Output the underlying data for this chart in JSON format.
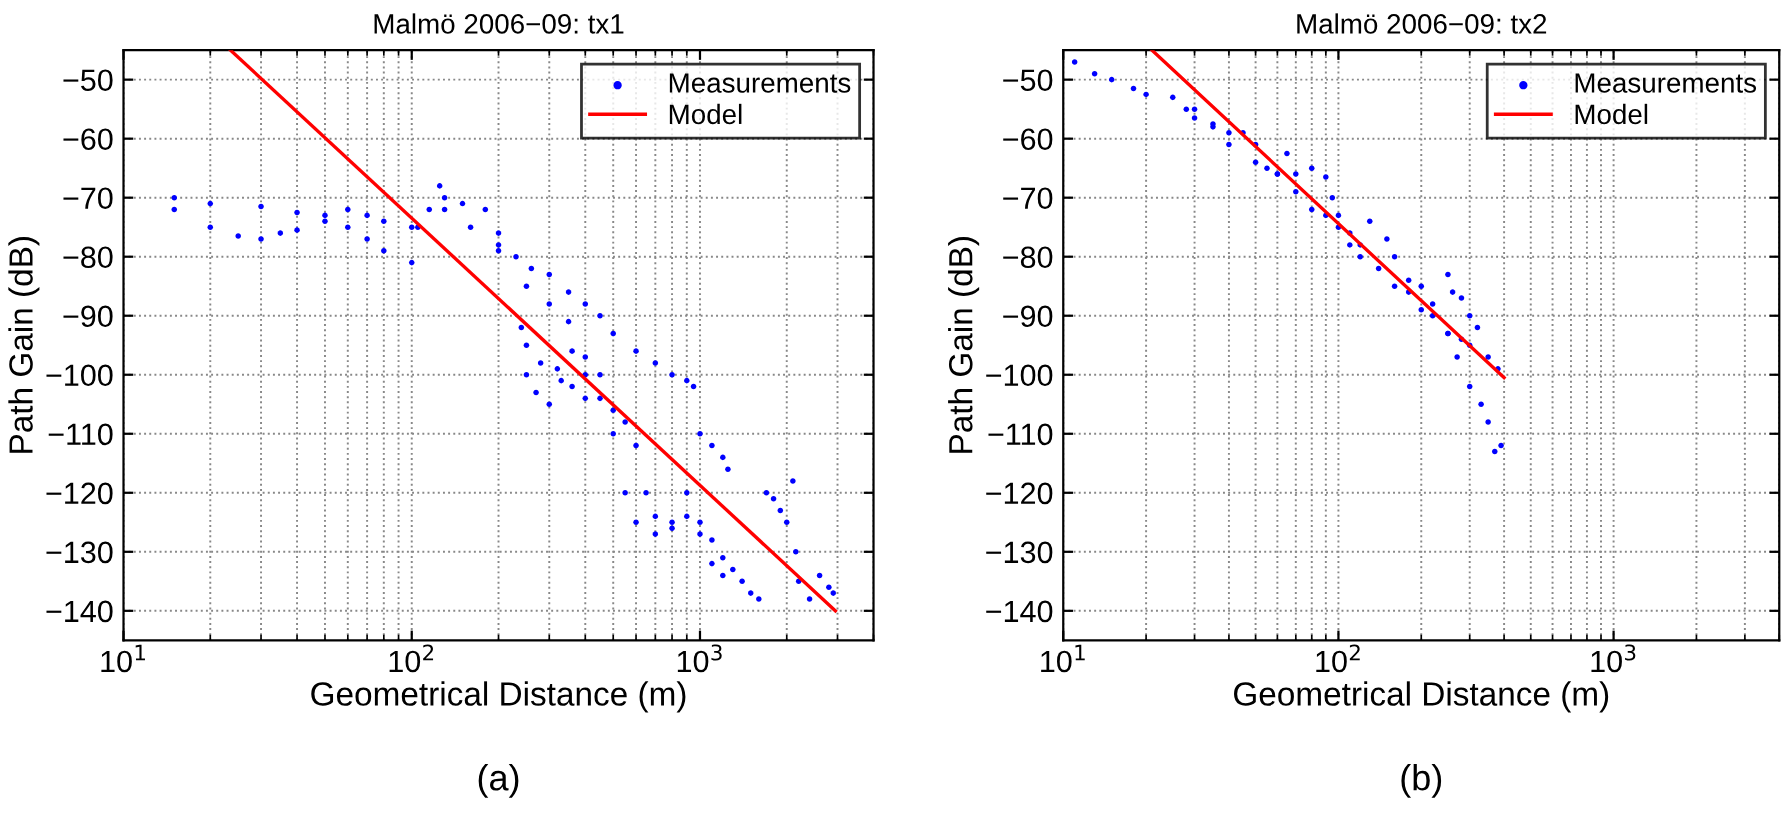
{
  "chart_data": [
    {
      "type": "scatter",
      "title": "Malmö 2006−09: tx1",
      "xlabel": "Geometrical Distance (m)",
      "ylabel": "Path Gain (dB)",
      "log": "x",
      "xlim": [
        10,
        4000
      ],
      "ylim": [
        -145,
        -45
      ],
      "xticks": [
        {
          "value": 10,
          "label": "10$^{1}$"
        },
        {
          "value": 100,
          "label": "10$^{2}$"
        },
        {
          "value": 1000,
          "label": "10$^{3}$"
        }
      ],
      "yticks": [
        -140,
        -130,
        -120,
        -110,
        -100,
        -90,
        -80,
        -70,
        -60,
        -50
      ],
      "grid": true,
      "legend": "top right",
      "annotations": [
        "(a)"
      ],
      "series": [
        {
          "name": "Measurements",
          "marker": "circle",
          "color": "#0000ff",
          "x": [
            15,
            20,
            30,
            40,
            50,
            60,
            70,
            80,
            100,
            15,
            20,
            25,
            30,
            35,
            40,
            50,
            60,
            70,
            80,
            100,
            105,
            115,
            125,
            130,
            150,
            180,
            200,
            230,
            260,
            300,
            350,
            400,
            450,
            500,
            600,
            700,
            800,
            900,
            950,
            1000,
            1100,
            1200,
            1250,
            130,
            160,
            200,
            250,
            300,
            350,
            400,
            450,
            500,
            550,
            600,
            650,
            700,
            800,
            900,
            1000,
            1100,
            1200,
            1300,
            1400,
            1600,
            200,
            240,
            250,
            270,
            300,
            330,
            360,
            400,
            250,
            280,
            320,
            360,
            400,
            450,
            500,
            550,
            600,
            700,
            800,
            900,
            1000,
            1100,
            1200,
            1500,
            1700,
            1800,
            1900,
            2000,
            2100,
            2150,
            2200,
            2400,
            2600,
            2800,
            2900
          ],
          "values": [
            -70,
            -71,
            -71.5,
            -72.5,
            -73,
            -72,
            -73,
            -74,
            -75,
            -72,
            -75,
            -76.5,
            -77,
            -76,
            -75.5,
            -74,
            -75,
            -77,
            -79,
            -81,
            -75,
            -72,
            -68,
            -70,
            -71,
            -72,
            -76,
            -80,
            -82,
            -83,
            -86,
            -88,
            -90,
            -93,
            -96,
            -98,
            -100,
            -101,
            -102,
            -110,
            -112,
            -114,
            -116,
            -72,
            -75,
            -79,
            -85,
            -88,
            -91,
            -97,
            -100,
            -106,
            -108,
            -112,
            -120,
            -124,
            -125,
            -124,
            -125,
            -128,
            -131,
            -133,
            -135,
            -138,
            -78,
            -92,
            -100,
            -103,
            -105,
            -101,
            -102,
            -104,
            -95,
            -98,
            -99,
            -96,
            -100,
            -104,
            -110,
            -120,
            -125,
            -127,
            -126,
            -120,
            -127,
            -132,
            -134,
            -137,
            -120,
            -121,
            -123,
            -125,
            -118,
            -130,
            -135,
            -138,
            -134,
            -136,
            -137
          ]
        },
        {
          "name": "Model",
          "type": "line",
          "marker": "none",
          "color": "#ff0000",
          "x": [
            23.5,
            2950
          ],
          "values": [
            -45,
            -140
          ]
        }
      ]
    },
    {
      "type": "scatter",
      "title": "Malmö 2006−09: tx2",
      "xlabel": "Geometrical Distance (m)",
      "ylabel": "Path Gain (dB)",
      "log": "x",
      "xlim": [
        10,
        4000
      ],
      "ylim": [
        -145,
        -45
      ],
      "xticks": [
        {
          "value": 10,
          "label": "10$^{1}$"
        },
        {
          "value": 100,
          "label": "10$^{2}$"
        },
        {
          "value": 1000,
          "label": "10$^{3}$"
        }
      ],
      "yticks": [
        -140,
        -130,
        -120,
        -110,
        -100,
        -90,
        -80,
        -70,
        -60,
        -50
      ],
      "grid": true,
      "legend": "top right",
      "annotations": [
        "(b)"
      ],
      "series": [
        {
          "name": "Measurements",
          "marker": "circle",
          "color": "#0000ff",
          "x": [
            11,
            13,
            15,
            18,
            20,
            25,
            28,
            30,
            35,
            40,
            45,
            50,
            55,
            60,
            65,
            70,
            80,
            90,
            95,
            100,
            110,
            120,
            130,
            150,
            160,
            180,
            200,
            220,
            250,
            270,
            300,
            330,
            350,
            370,
            390,
            30,
            35,
            40,
            50,
            60,
            70,
            80,
            90,
            100,
            110,
            120,
            140,
            160,
            180,
            200,
            220,
            250,
            280,
            300,
            350,
            380,
            250,
            260,
            280,
            300,
            320
          ],
          "values": [
            -47,
            -49,
            -50,
            -51.5,
            -52.5,
            -53,
            -55,
            -56.5,
            -57.5,
            -61,
            -59,
            -61,
            -65,
            -66,
            -62.5,
            -66,
            -65,
            -66.5,
            -70,
            -73,
            -76,
            -78,
            -74,
            -77,
            -80,
            -84,
            -85,
            -88,
            -93,
            -97,
            -102,
            -105,
            -108,
            -113,
            -112,
            -55,
            -58,
            -59,
            -64,
            -66,
            -69,
            -72,
            -73,
            -75,
            -78,
            -80,
            -82,
            -85,
            -86,
            -89,
            -90,
            -93,
            -94,
            -95,
            -97,
            -99,
            -83,
            -86,
            -87,
            -90,
            -92
          ]
        },
        {
          "name": "Model",
          "type": "line",
          "marker": "none",
          "color": "#ff0000",
          "x": [
            21,
            400
          ],
          "values": [
            -45,
            -100.5
          ]
        }
      ]
    }
  ]
}
